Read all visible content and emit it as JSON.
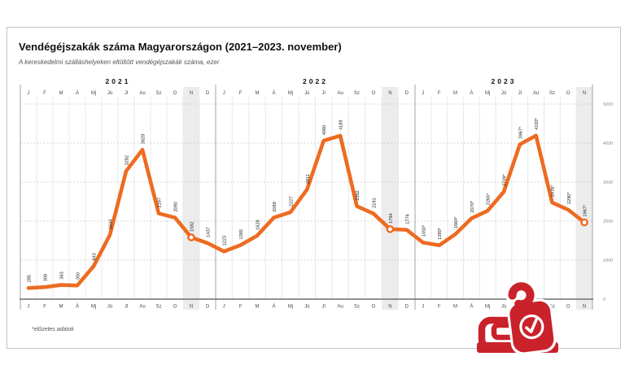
{
  "card": {
    "title": "Vendégéjszakák száma Magyarországon (2021–2023. november)",
    "subtitle": "A kereskedelmi szálláshelyeken eltöltött vendégéjszakák száma, ezer",
    "footnote": "*előzetes adatok"
  },
  "logo": {
    "icon": "hotel-bed-door-hanger-clock-icon",
    "color": "#C9222B"
  },
  "chart_data": {
    "type": "line",
    "title": "Vendégéjszakák száma Magyarországon (2021–2023. november)",
    "xlabel": "",
    "ylabel": "",
    "unit": "ezer vendégéjszaka",
    "ylim": [
      0,
      5000
    ],
    "yticks": [
      0,
      1000,
      2000,
      3000,
      4000,
      5000
    ],
    "ytick_labels": [
      "0",
      "1000",
      "2000",
      "3000",
      "4000",
      "5000"
    ],
    "grid": "horizontal-dotted",
    "legend": "none",
    "line_color": "#ED6B21",
    "highlight_color": "#ececec",
    "highlight_month": "N",
    "panels": [
      {
        "year": "2021",
        "months": [
          "J",
          "F",
          "M",
          "Á",
          "Mj",
          "Jú",
          "Jl",
          "Au",
          "Sz",
          "O",
          "N",
          "D"
        ],
        "values": [
          285,
          308,
          363,
          350,
          843,
          1644,
          3282,
          3829,
          2197,
          2090,
          1582,
          1437
        ],
        "labels": [
          "285",
          "308",
          "363",
          "350",
          "843",
          "1644",
          "3282",
          "3829",
          "2197",
          "2090",
          "1582",
          "1437"
        ],
        "highlight_index": 10
      },
      {
        "year": "2022",
        "months": [
          "J",
          "F",
          "M",
          "Á",
          "Mj",
          "Jú",
          "Jl",
          "Au",
          "Sz",
          "O",
          "N",
          "D"
        ],
        "values": [
          1223,
          1385,
          1628,
          2089,
          2227,
          2811,
          4060,
          4189,
          2382,
          2191,
          1794,
          1776
        ],
        "labels": [
          "1223",
          "1385",
          "1628",
          "2089",
          "2227",
          "2811",
          "4060",
          "4189",
          "2382",
          "2191",
          "1794",
          "1776"
        ],
        "highlight_index": 10
      },
      {
        "year": "2023",
        "months": [
          "J",
          "F",
          "M",
          "Á",
          "Mj",
          "Jú",
          "Jl",
          "Au",
          "Sz",
          "O",
          "N"
        ],
        "values": [
          1450,
          1380,
          1664,
          2070,
          2265,
          2749,
          3967,
          4193,
          2476,
          2290,
          1967
        ],
        "labels": [
          "1450*",
          "1380*",
          "1664*",
          "2070*",
          "2265*",
          "2749*",
          "3967*",
          "4193*",
          "2476*",
          "2290*",
          "1967*"
        ],
        "highlight_index": 10
      }
    ]
  }
}
